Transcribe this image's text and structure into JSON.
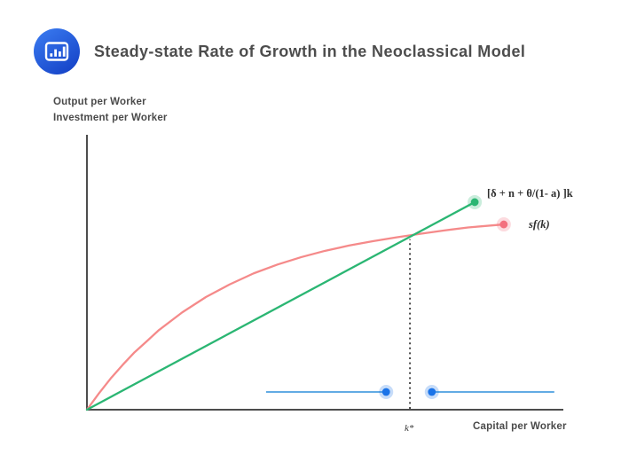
{
  "header": {
    "title": "Steady-state Rate of Growth in the Neoclassical Model",
    "icon": "bar-chart-icon",
    "icon_colors": {
      "top": "#3b7df2",
      "bottom": "#1745c9",
      "glyph": "#ffffff"
    }
  },
  "axis_labels": {
    "y_line1": "Output per Worker",
    "y_line2": "Investment per Worker",
    "x": "Capital per Worker"
  },
  "curve_labels": {
    "line": "[δ + n  + θ/(1- a) ]k",
    "curve": "sf(k)",
    "k_star": "k*"
  },
  "chart_data": {
    "type": "line",
    "title": "Steady-state Rate of Growth in the Neoclassical Model",
    "xlabel": "Capital per Worker",
    "ylabel": "Output per Worker / Investment per Worker",
    "axis_ticks": "none (qualitative diagram, normalized 0-1 coordinates)",
    "axis_color": "#4d4d4d",
    "legend_position": "inline right labels",
    "grid": false,
    "series": [
      {
        "name": "sf(k)",
        "shape": "concave saving curve",
        "color": "#f58a8a",
        "marker_color": "#f3707e",
        "endpoint_marker": "end",
        "points": [
          [
            0,
            0
          ],
          [
            0.025,
            0.059
          ],
          [
            0.05,
            0.114
          ],
          [
            0.075,
            0.163
          ],
          [
            0.1,
            0.209
          ],
          [
            0.125,
            0.248
          ],
          [
            0.15,
            0.288
          ],
          [
            0.2,
            0.354
          ],
          [
            0.25,
            0.41
          ],
          [
            0.3,
            0.456
          ],
          [
            0.35,
            0.496
          ],
          [
            0.4,
            0.528
          ],
          [
            0.45,
            0.555
          ],
          [
            0.5,
            0.578
          ],
          [
            0.55,
            0.597
          ],
          [
            0.6,
            0.613
          ],
          [
            0.65,
            0.627
          ],
          [
            0.7,
            0.64
          ],
          [
            0.75,
            0.652
          ],
          [
            0.8,
            0.663
          ],
          [
            0.875,
            0.674
          ]
        ]
      },
      {
        "name": "[δ + n + θ/(1- a) ]k",
        "shape": "effective depreciation line",
        "color": "#2bb673",
        "marker_color": "#2bb673",
        "endpoint_marker": "end",
        "points": [
          [
            0,
            0
          ],
          [
            0.814,
            0.755
          ]
        ]
      }
    ],
    "steady_state": {
      "x": 0.678,
      "guide_top": 0.62,
      "label": "k*",
      "guide_color": "#3f3f3f"
    },
    "reference_segments": [
      {
        "x1": 0.376,
        "x2": 0.628,
        "y": 0.0645,
        "dot_at": "end"
      },
      {
        "x1": 0.724,
        "x2": 0.981,
        "y": 0.0645,
        "dot_at": "start"
      }
    ],
    "segment_color": "#2e8fdc",
    "dot_color": "#1a73e8"
  }
}
